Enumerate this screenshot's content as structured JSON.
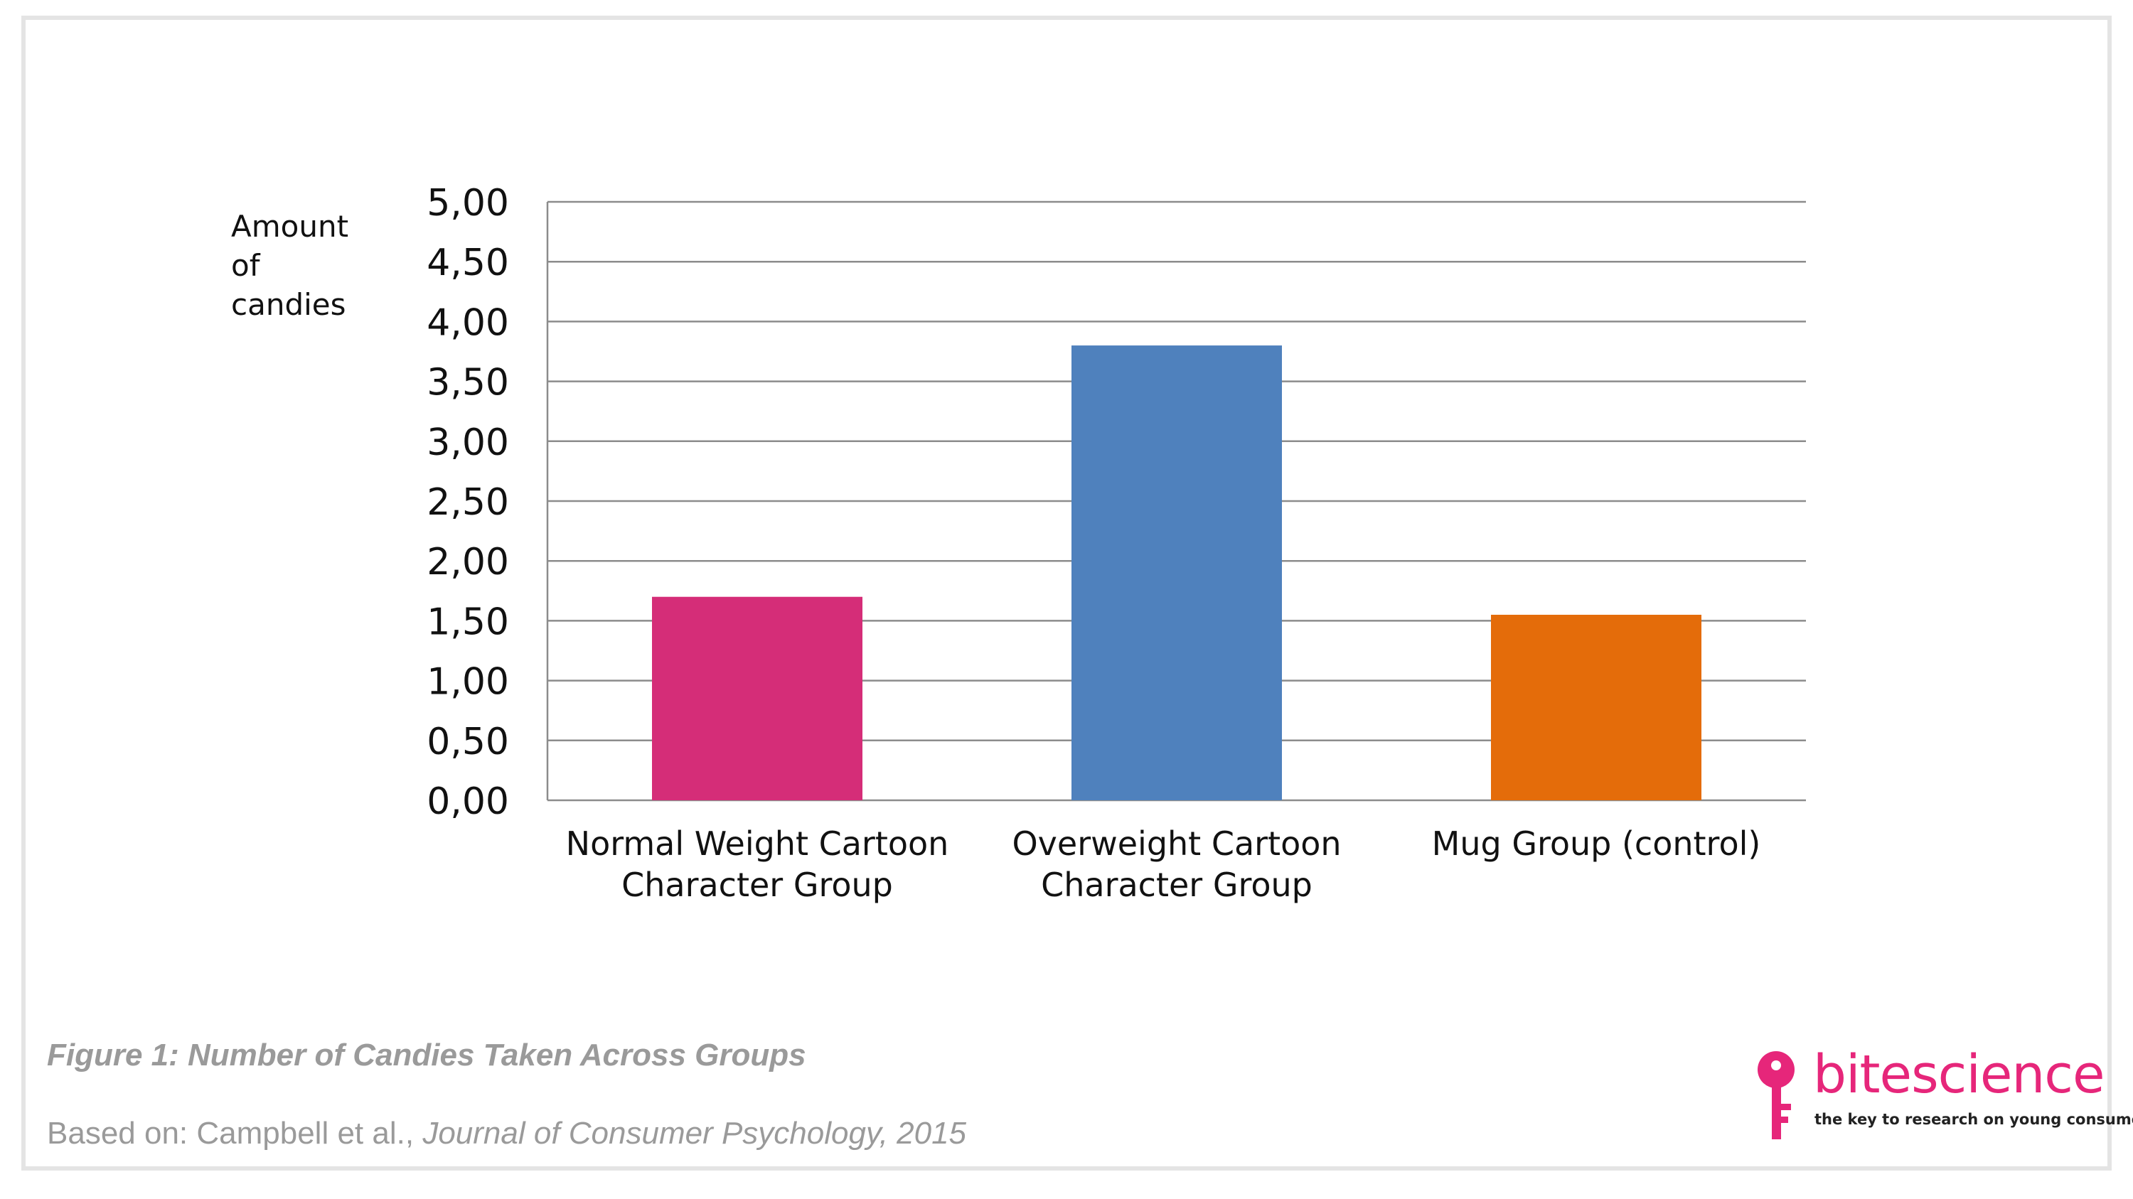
{
  "chart_data": {
    "type": "bar",
    "categories": [
      [
        "Normal Weight Cartoon",
        "Character Group"
      ],
      [
        "Overweight Cartoon",
        "Character Group"
      ],
      [
        "Mug Group (control)"
      ]
    ],
    "values": [
      1.7,
      3.8,
      1.55
    ],
    "colors": [
      "#d52d78",
      "#4f81bd",
      "#e46c0a"
    ],
    "ylabel": [
      "Amount",
      "of",
      "candies"
    ],
    "ylim": [
      0,
      5
    ],
    "yticks": [
      "0,00",
      "0,50",
      "1,00",
      "1,50",
      "2,00",
      "2,50",
      "3,00",
      "3,50",
      "4,00",
      "4,50",
      "5,00"
    ],
    "grid": true,
    "legend": "none"
  },
  "caption": "Figure 1: Number of Candies Taken Across Groups",
  "source": {
    "prefix": "Based on: Campbell et al., ",
    "journal": "Journal of Consumer Psychology, 2015"
  },
  "logo": {
    "word": "bitescience",
    "tagline": "the key to research on young consumers",
    "icon": "key-icon",
    "color": "#e6267a"
  }
}
